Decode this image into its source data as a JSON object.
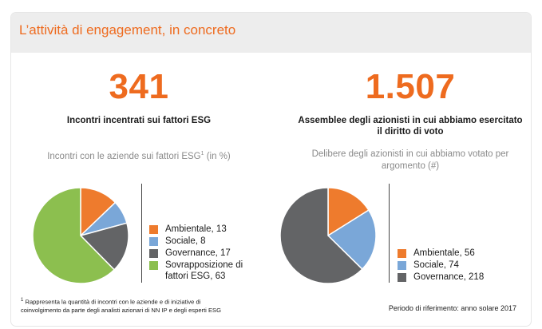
{
  "header": {
    "title": "L’attività di engagement, in concreto"
  },
  "left": {
    "big_number": "341",
    "label": "Incontri incentrati sui fattori ESG",
    "subtitle_main": "Incontri con le aziende sui fattori ESG",
    "subtitle_sup": "1",
    "subtitle_suffix": " (in %)"
  },
  "right": {
    "big_number": "1.507",
    "label_line1": "Assemblee degli azionisti in cui abbiamo esercitato",
    "label_line2": "il diritto di voto",
    "subtitle_line1": "Delibere degli azionisti in cui abbiamo votato per",
    "subtitle_line2": "argomento (#)"
  },
  "footnote": {
    "sup": "1",
    "line1": " Rappresenta la quantità di incontri con le aziende e di iniziative di",
    "line2": "coinvolgimento da parte degli analisti azionari di NN IP e degli esperti ESG"
  },
  "period": "Periodo di riferimento: anno solare 2017",
  "colors": {
    "accent": "#ee6b1f",
    "ambientale": "#ee7b2d",
    "sociale": "#7aa7d8",
    "governance": "#636466",
    "sovrapposizione": "#8cbf4f"
  },
  "chart_data": [
    {
      "type": "pie",
      "title": "Incontri con le aziende sui fattori ESG (in %)",
      "categories": [
        "Ambientale",
        "Sociale",
        "Governance",
        "Sovrapposizione di fattori ESG"
      ],
      "values": [
        13,
        8,
        17,
        63
      ],
      "legend": [
        {
          "line1": "Ambientale, 13",
          "line2": ""
        },
        {
          "line1": "Sociale, 8",
          "line2": ""
        },
        {
          "line1": "Governance, 17",
          "line2": ""
        },
        {
          "line1": "Sovrapposizione di",
          "line2": "fattori ESG, 63"
        }
      ],
      "legend_position": "right"
    },
    {
      "type": "pie",
      "title": "Delibere degli azionisti in cui abbiamo votato per argomento (#)",
      "categories": [
        "Ambientale",
        "Sociale",
        "Governance"
      ],
      "values": [
        56,
        74,
        218
      ],
      "legend": [
        {
          "line1": "Ambientale, 56",
          "line2": ""
        },
        {
          "line1": "Sociale, 74",
          "line2": ""
        },
        {
          "line1": "Governance, 218",
          "line2": ""
        }
      ],
      "legend_position": "right"
    }
  ]
}
